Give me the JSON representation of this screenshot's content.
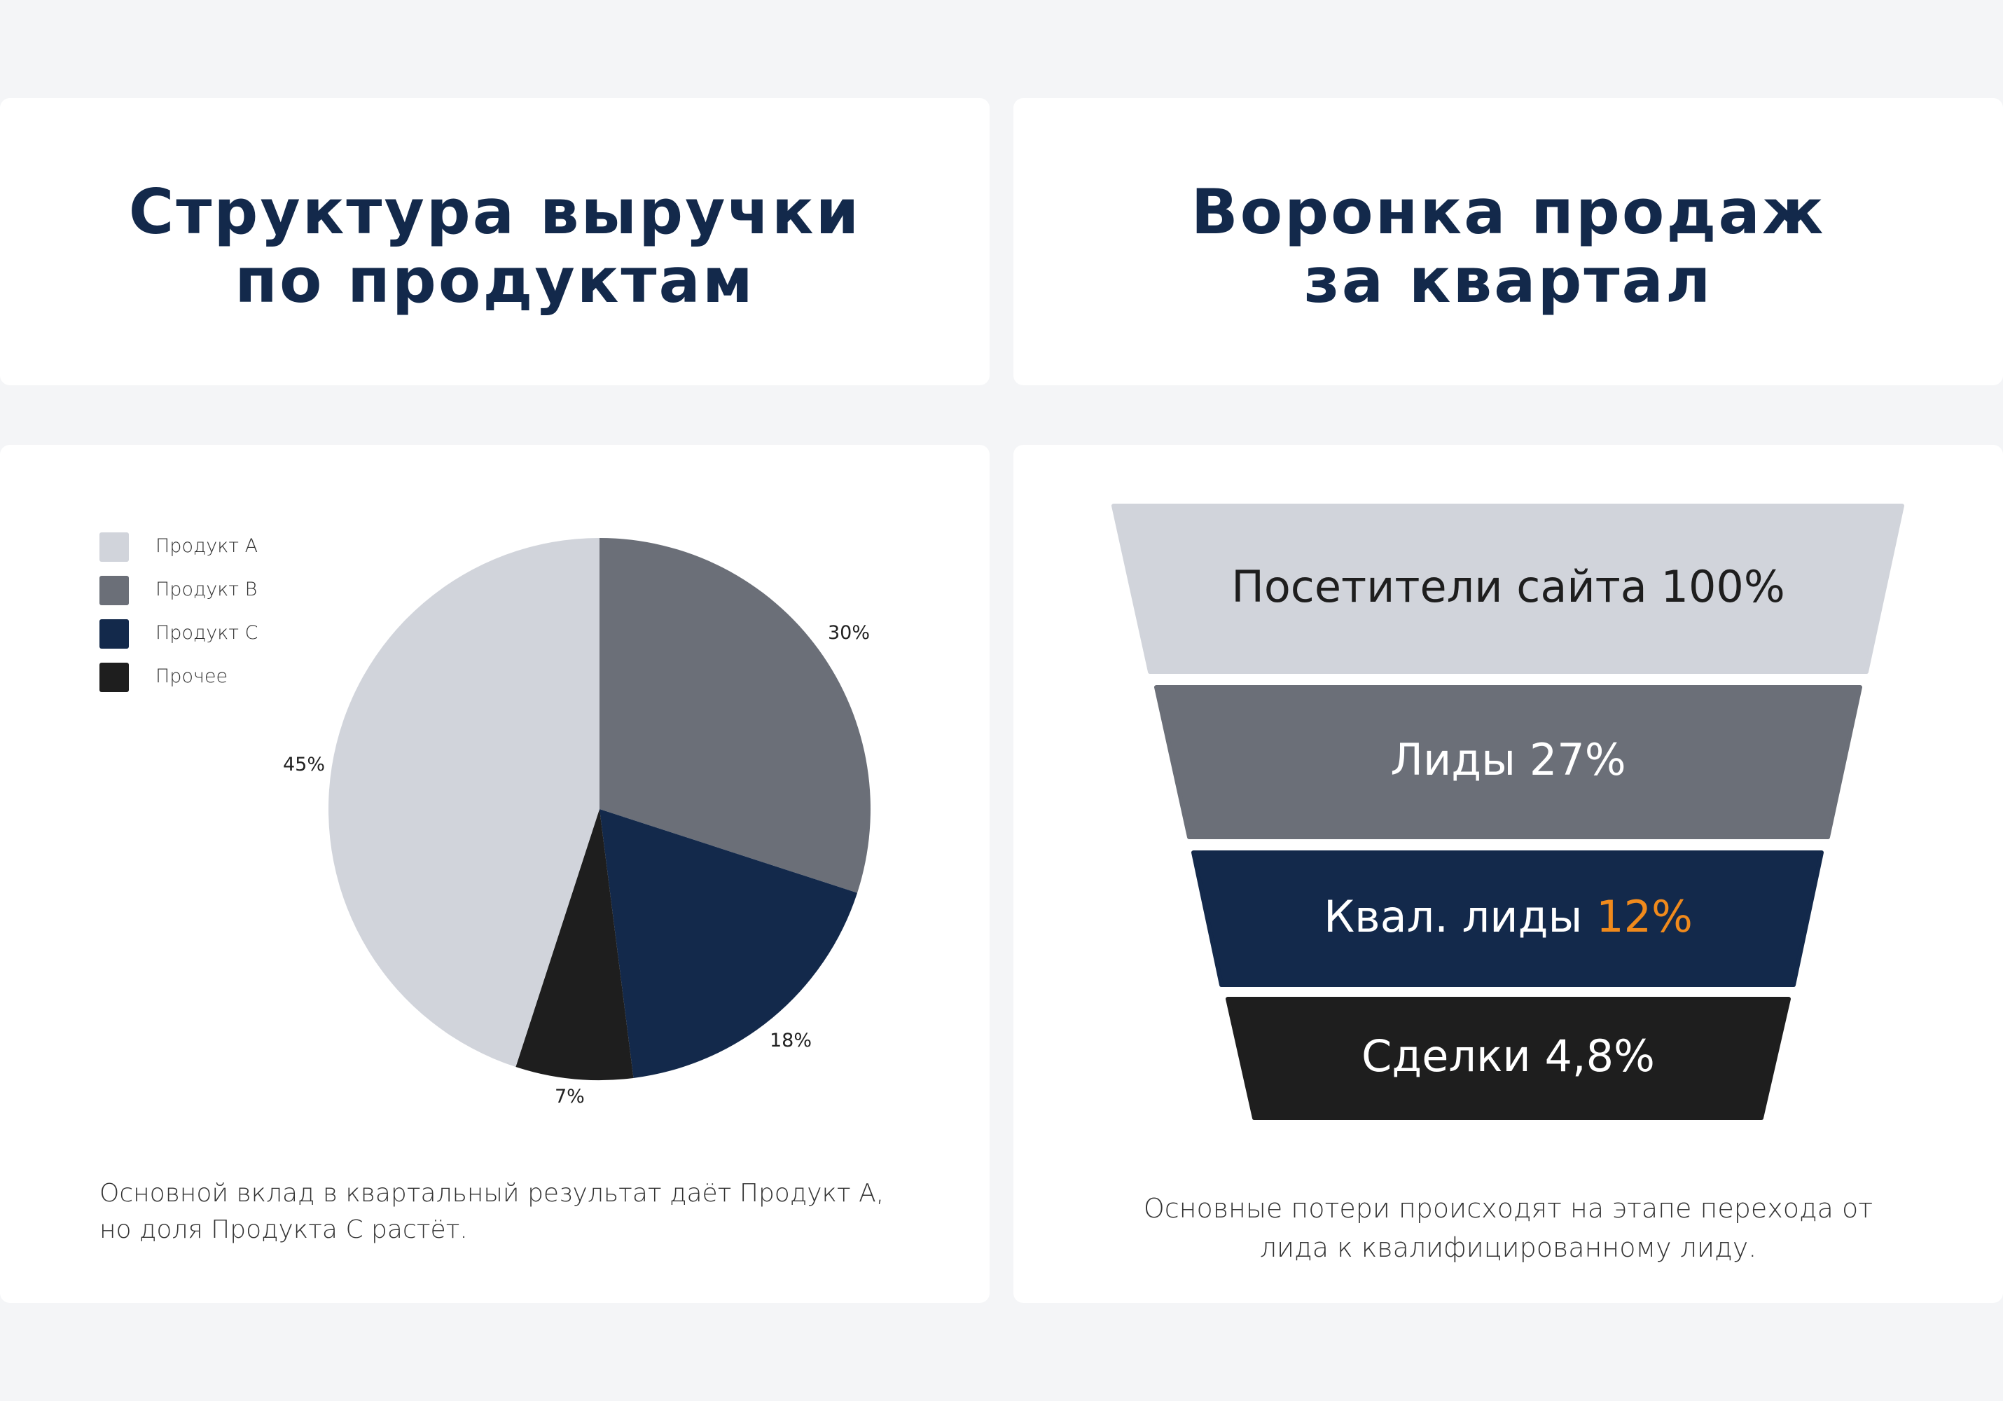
{
  "left_panel": {
    "title_line1": "Структура выручки",
    "title_line2": "по продуктам",
    "caption_line1": "Основной вклад в квартальный результат даёт Продукт А,",
    "caption_line2": "но доля Продукта С растёт."
  },
  "right_panel": {
    "title_line1": "Воронка продаж",
    "title_line2": "за квартал",
    "caption_line1": "Основные потери происходят на этапе перехода от",
    "caption_line2": "лида к квалифицированному лиду."
  },
  "chart_data": [
    {
      "type": "pie",
      "title": "Структура выручки по продуктам",
      "legend_position": "top-left",
      "slices": [
        {
          "label": "Продукт B",
          "value": 30,
          "value_label": "30%",
          "color": "#6b6f78"
        },
        {
          "label": "Продукт C",
          "value": 18,
          "value_label": "18%",
          "color": "#13294b"
        },
        {
          "label": "Прочее",
          "value": 7,
          "value_label": "7%",
          "color": "#1e1e1e"
        },
        {
          "label": "Продукт A",
          "value": 45,
          "value_label": "45%",
          "color": "#d1d4db"
        }
      ],
      "legend": [
        {
          "label": "Продукт A",
          "color": "#d1d4db"
        },
        {
          "label": "Продукт B",
          "color": "#6b6f78"
        },
        {
          "label": "Продукт C",
          "color": "#13294b"
        },
        {
          "label": "Прочее",
          "color": "#1e1e1e"
        }
      ]
    },
    {
      "type": "funnel",
      "title": "Воронка продаж за квартал",
      "stages": [
        {
          "label": "Посетители сайта",
          "value": 100,
          "value_label": "100%",
          "color": "#d1d4db",
          "text_color": "#1e1e1e",
          "value_color": "#1e1e1e"
        },
        {
          "label": "Лиды",
          "value": 27,
          "value_label": "27%",
          "color": "#6b6f78",
          "text_color": "#ffffff",
          "value_color": "#ffffff"
        },
        {
          "label": "Квал. лиды",
          "value": 12,
          "value_label": "12%",
          "color": "#13294b",
          "text_color": "#ffffff",
          "value_color": "#f08a1c"
        },
        {
          "label": "Сделки",
          "value": 4.8,
          "value_label": "4,8%",
          "color": "#1e1e1e",
          "text_color": "#ffffff",
          "value_color": "#ffffff"
        }
      ]
    }
  ]
}
